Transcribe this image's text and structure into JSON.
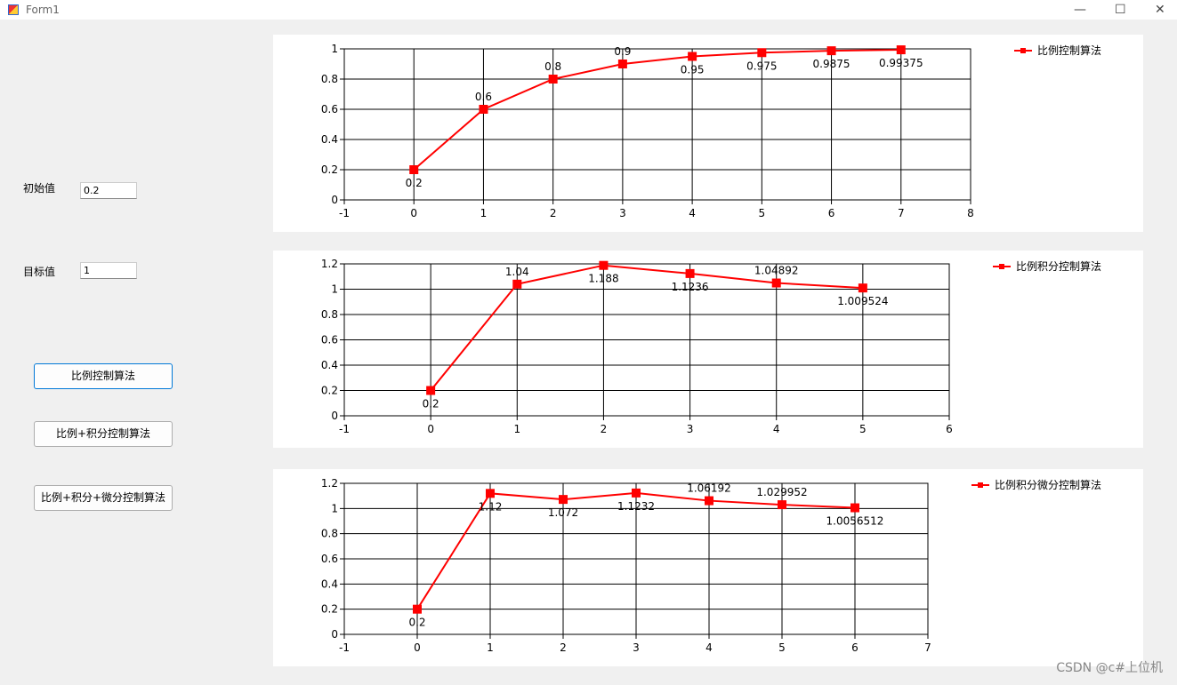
{
  "window": {
    "title": "Form1"
  },
  "form": {
    "initial_label": "初始值",
    "initial_value": "0.2",
    "target_label": "目标值",
    "target_value": "1",
    "buttons": [
      "比例控制算法",
      "比例+积分控制算法",
      "比例+积分+微分控制算法"
    ]
  },
  "watermark": "CSDN @c#上位机",
  "chart_data": [
    {
      "type": "line",
      "x": [
        0,
        1,
        2,
        3,
        4,
        5,
        6,
        7
      ],
      "series": [
        {
          "name": "比例控制算法",
          "color": "#ff0000",
          "values": [
            0.2,
            0.6,
            0.8,
            0.9,
            0.95,
            0.975,
            0.9875,
            0.99375
          ]
        }
      ],
      "xlim": [
        -1,
        8
      ],
      "xticks": [
        -1,
        0,
        1,
        2,
        3,
        4,
        5,
        6,
        7,
        8
      ],
      "ylim": [
        0,
        1
      ],
      "yticks": [
        0,
        0.2,
        0.4,
        0.6,
        0.8,
        1
      ],
      "grid": true,
      "legend": "top-right"
    },
    {
      "type": "line",
      "x": [
        0,
        1,
        2,
        3,
        4,
        5
      ],
      "series": [
        {
          "name": "比例积分控制算法",
          "color": "#ff0000",
          "values": [
            0.2,
            1.04,
            1.188,
            1.1236,
            1.04892,
            1.009524
          ]
        }
      ],
      "xlim": [
        -1,
        6
      ],
      "xticks": [
        -1,
        0,
        1,
        2,
        3,
        4,
        5,
        6
      ],
      "ylim": [
        0,
        1.2
      ],
      "yticks": [
        0,
        0.2,
        0.4,
        0.6,
        0.8,
        1,
        1.2
      ],
      "grid": true,
      "legend": "top-right"
    },
    {
      "type": "line",
      "x": [
        0,
        1,
        2,
        3,
        4,
        5,
        6
      ],
      "series": [
        {
          "name": "比例积分微分控制算法",
          "color": "#ff0000",
          "values": [
            0.2,
            1.12,
            1.072,
            1.1232,
            1.06192,
            1.029952,
            1.0056512
          ]
        }
      ],
      "xlim": [
        -1,
        7
      ],
      "xticks": [
        -1,
        0,
        1,
        2,
        3,
        4,
        5,
        6,
        7
      ],
      "ylim": [
        0,
        1.2
      ],
      "yticks": [
        0,
        0.2,
        0.4,
        0.6,
        0.8,
        1,
        1.2
      ],
      "grid": true,
      "legend": "top-right"
    }
  ]
}
